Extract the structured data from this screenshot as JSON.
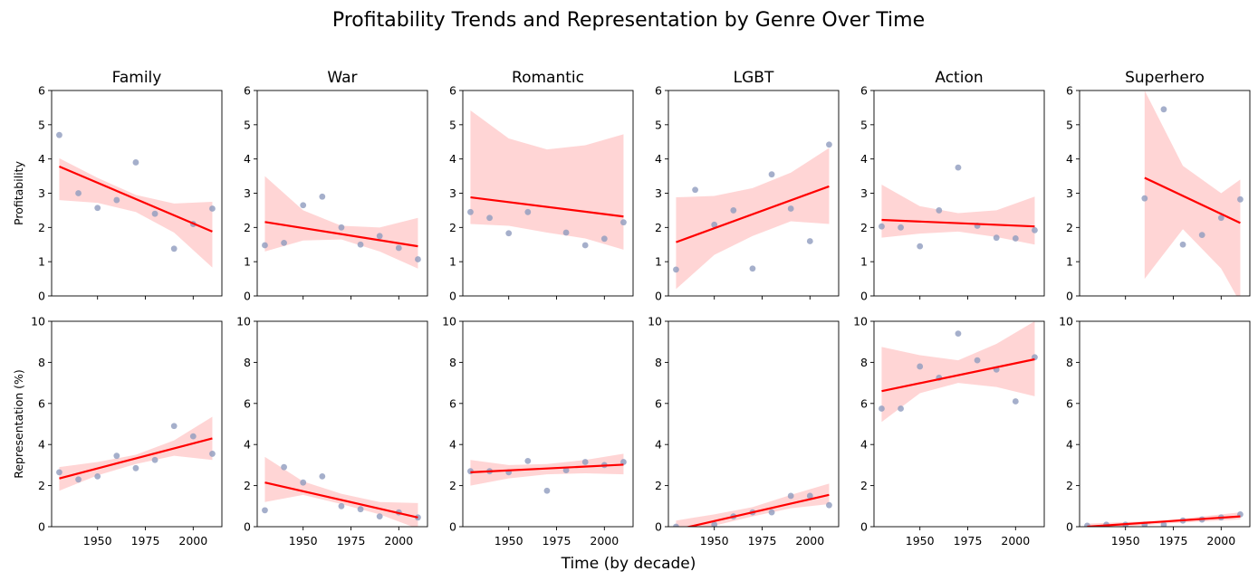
{
  "title": "Profitability Trends and Representation by Genre Over Time",
  "xlabel": "Time (by decade)",
  "colors": {
    "points": "#8e9bbe",
    "trend": "#ff0000",
    "band": "#ffb3b3"
  },
  "chart_data": {
    "type": "scatter",
    "subtype": "regression-grid",
    "x_ticks": [
      1950,
      1975,
      2000
    ],
    "x_range": [
      1926,
      2015
    ],
    "rows": [
      {
        "ylabel": "Profitability",
        "ylim": [
          0,
          6
        ],
        "yticks": [
          0,
          1,
          2,
          3,
          4,
          5,
          6
        ]
      },
      {
        "ylabel": "Representation (%)",
        "ylim": [
          0,
          10
        ],
        "yticks": [
          0,
          2,
          4,
          6,
          8,
          10
        ]
      }
    ],
    "genres": [
      {
        "name": "Family",
        "profitability": {
          "points": [
            [
              1930,
              4.7
            ],
            [
              1940,
              3.0
            ],
            [
              1950,
              2.57
            ],
            [
              1960,
              2.8
            ],
            [
              1970,
              3.9
            ],
            [
              1980,
              2.4
            ],
            [
              1990,
              1.38
            ],
            [
              2000,
              2.1
            ],
            [
              2010,
              2.55
            ]
          ],
          "line": [
            1930,
            3.78,
            2010,
            1.88
          ],
          "band": [
            [
              1930,
              2.8,
              4.02
            ],
            [
              1950,
              2.72,
              3.45
            ],
            [
              1970,
              2.45,
              2.95
            ],
            [
              1990,
              1.85,
              2.7
            ],
            [
              2010,
              0.83,
              2.75
            ]
          ]
        },
        "representation": {
          "points": [
            [
              1930,
              2.65
            ],
            [
              1940,
              2.3
            ],
            [
              1950,
              2.45
            ],
            [
              1960,
              3.45
            ],
            [
              1970,
              2.85
            ],
            [
              1980,
              3.25
            ],
            [
              1990,
              4.9
            ],
            [
              2000,
              4.4
            ],
            [
              2010,
              3.55
            ]
          ],
          "line": [
            1930,
            2.35,
            2010,
            4.3
          ],
          "band": [
            [
              1930,
              1.75,
              2.9
            ],
            [
              1950,
              2.5,
              3.15
            ],
            [
              1970,
              3.05,
              3.5
            ],
            [
              1990,
              3.45,
              4.2
            ],
            [
              2010,
              3.25,
              5.35
            ]
          ]
        }
      },
      {
        "name": "War",
        "profitability": {
          "points": [
            [
              1930,
              1.48
            ],
            [
              1940,
              1.55
            ],
            [
              1950,
              2.65
            ],
            [
              1960,
              2.9
            ],
            [
              1970,
              2.0
            ],
            [
              1980,
              1.5
            ],
            [
              1990,
              1.75
            ],
            [
              2000,
              1.4
            ],
            [
              2010,
              1.07
            ]
          ],
          "line": [
            1930,
            2.16,
            2010,
            1.45
          ],
          "band": [
            [
              1930,
              1.3,
              3.5
            ],
            [
              1950,
              1.62,
              2.5
            ],
            [
              1970,
              1.65,
              2.05
            ],
            [
              1990,
              1.3,
              2.0
            ],
            [
              2010,
              0.8,
              2.28
            ]
          ]
        },
        "representation": {
          "points": [
            [
              1930,
              0.8
            ],
            [
              1940,
              2.9
            ],
            [
              1950,
              2.15
            ],
            [
              1960,
              2.45
            ],
            [
              1970,
              1.0
            ],
            [
              1980,
              0.85
            ],
            [
              1990,
              0.5
            ],
            [
              2000,
              0.7
            ],
            [
              2010,
              0.45
            ]
          ],
          "line": [
            1930,
            2.15,
            2010,
            0.45
          ],
          "band": [
            [
              1930,
              1.2,
              3.4
            ],
            [
              1950,
              1.55,
              2.2
            ],
            [
              1970,
              1.1,
              1.6
            ],
            [
              1990,
              0.6,
              1.2
            ],
            [
              2010,
              -0.1,
              1.15
            ]
          ]
        }
      },
      {
        "name": "Romantic",
        "profitability": {
          "points": [
            [
              1930,
              2.45
            ],
            [
              1940,
              2.28
            ],
            [
              1950,
              1.83
            ],
            [
              1960,
              2.45
            ],
            [
              1980,
              1.85
            ],
            [
              1990,
              1.48
            ],
            [
              2000,
              1.67
            ],
            [
              2010,
              2.15
            ]
          ],
          "line": [
            1930,
            2.88,
            2010,
            2.32
          ],
          "band": [
            [
              1930,
              2.1,
              5.42
            ],
            [
              1950,
              2.05,
              4.6
            ],
            [
              1970,
              1.85,
              4.28
            ],
            [
              1990,
              1.68,
              4.4
            ],
            [
              2010,
              1.35,
              4.72
            ]
          ]
        },
        "representation": {
          "points": [
            [
              1930,
              2.7
            ],
            [
              1940,
              2.7
            ],
            [
              1950,
              2.65
            ],
            [
              1960,
              3.2
            ],
            [
              1970,
              1.75
            ],
            [
              1980,
              2.75
            ],
            [
              1990,
              3.15
            ],
            [
              2000,
              3.0
            ],
            [
              2010,
              3.15
            ]
          ],
          "line": [
            1930,
            2.65,
            2010,
            3.02
          ],
          "band": [
            [
              1930,
              2.0,
              3.25
            ],
            [
              1950,
              2.35,
              3.0
            ],
            [
              1970,
              2.55,
              3.05
            ],
            [
              1990,
              2.6,
              3.25
            ],
            [
              2010,
              2.55,
              3.55
            ]
          ]
        }
      },
      {
        "name": "LGBT",
        "profitability": {
          "points": [
            [
              1930,
              0.77
            ],
            [
              1940,
              3.1
            ],
            [
              1950,
              2.08
            ],
            [
              1960,
              2.5
            ],
            [
              1970,
              0.8
            ],
            [
              1980,
              3.55
            ],
            [
              1990,
              2.55
            ],
            [
              2000,
              1.6
            ],
            [
              2010,
              4.42
            ]
          ],
          "line": [
            1930,
            1.57,
            2010,
            3.2
          ],
          "band": [
            [
              1930,
              0.2,
              2.88
            ],
            [
              1950,
              1.2,
              2.92
            ],
            [
              1970,
              1.75,
              3.15
            ],
            [
              1990,
              2.18,
              3.6
            ],
            [
              2010,
              2.1,
              4.32
            ]
          ]
        },
        "representation": {
          "points": [
            [
              1930,
              0.0
            ],
            [
              1950,
              0.1
            ],
            [
              1960,
              0.5
            ],
            [
              1970,
              0.7
            ],
            [
              1980,
              0.7
            ],
            [
              1990,
              1.5
            ],
            [
              2000,
              1.5
            ],
            [
              2010,
              1.05
            ]
          ],
          "line": [
            1930,
            -0.15,
            2010,
            1.55
          ],
          "band": [
            [
              1930,
              -0.6,
              0.3
            ],
            [
              1950,
              0.05,
              0.6
            ],
            [
              1970,
              0.5,
              0.95
            ],
            [
              1990,
              0.9,
              1.55
            ],
            [
              2010,
              1.1,
              2.1
            ]
          ]
        }
      },
      {
        "name": "Action",
        "profitability": {
          "points": [
            [
              1930,
              2.03
            ],
            [
              1940,
              2.0
            ],
            [
              1950,
              1.45
            ],
            [
              1960,
              2.5
            ],
            [
              1970,
              3.75
            ],
            [
              1980,
              2.05
            ],
            [
              1990,
              1.7
            ],
            [
              2000,
              1.68
            ],
            [
              2010,
              1.92
            ]
          ],
          "line": [
            1930,
            2.22,
            2010,
            2.03
          ],
          "band": [
            [
              1930,
              1.7,
              3.25
            ],
            [
              1950,
              1.82,
              2.62
            ],
            [
              1970,
              1.88,
              2.42
            ],
            [
              1990,
              1.72,
              2.5
            ],
            [
              2010,
              1.5,
              2.9
            ]
          ]
        },
        "representation": {
          "points": [
            [
              1930,
              5.75
            ],
            [
              1940,
              5.75
            ],
            [
              1950,
              7.8
            ],
            [
              1960,
              7.25
            ],
            [
              1970,
              9.4
            ],
            [
              1980,
              8.1
            ],
            [
              1990,
              7.65
            ],
            [
              2000,
              6.1
            ],
            [
              2010,
              8.25
            ]
          ],
          "line": [
            1930,
            6.6,
            2010,
            8.15
          ],
          "band": [
            [
              1930,
              5.1,
              8.75
            ],
            [
              1950,
              6.5,
              8.35
            ],
            [
              1970,
              7.0,
              8.1
            ],
            [
              1990,
              6.8,
              8.9
            ],
            [
              2010,
              6.35,
              10.0
            ]
          ]
        }
      },
      {
        "name": "Superhero",
        "profitability": {
          "points": [
            [
              1960,
              2.85
            ],
            [
              1970,
              5.45
            ],
            [
              1980,
              1.5
            ],
            [
              1990,
              1.78
            ],
            [
              2000,
              2.28
            ],
            [
              2010,
              2.82
            ]
          ],
          "line": [
            1960,
            3.45,
            2010,
            2.13
          ],
          "band": [
            [
              1960,
              0.5,
              6.0
            ],
            [
              1980,
              1.95,
              3.8
            ],
            [
              2000,
              0.8,
              3.0
            ],
            [
              2010,
              -0.2,
              3.4
            ]
          ]
        },
        "representation": {
          "points": [
            [
              1930,
              0.05
            ],
            [
              1940,
              0.1
            ],
            [
              1950,
              0.1
            ],
            [
              1960,
              0.1
            ],
            [
              1970,
              0.1
            ],
            [
              1980,
              0.3
            ],
            [
              1990,
              0.35
            ],
            [
              2000,
              0.45
            ],
            [
              2010,
              0.6
            ]
          ],
          "line": [
            1930,
            0.0,
            2010,
            0.5
          ],
          "band": [
            [
              1930,
              -0.15,
              0.15
            ],
            [
              1970,
              0.15,
              0.3
            ],
            [
              2010,
              0.35,
              0.7
            ]
          ]
        }
      }
    ]
  }
}
